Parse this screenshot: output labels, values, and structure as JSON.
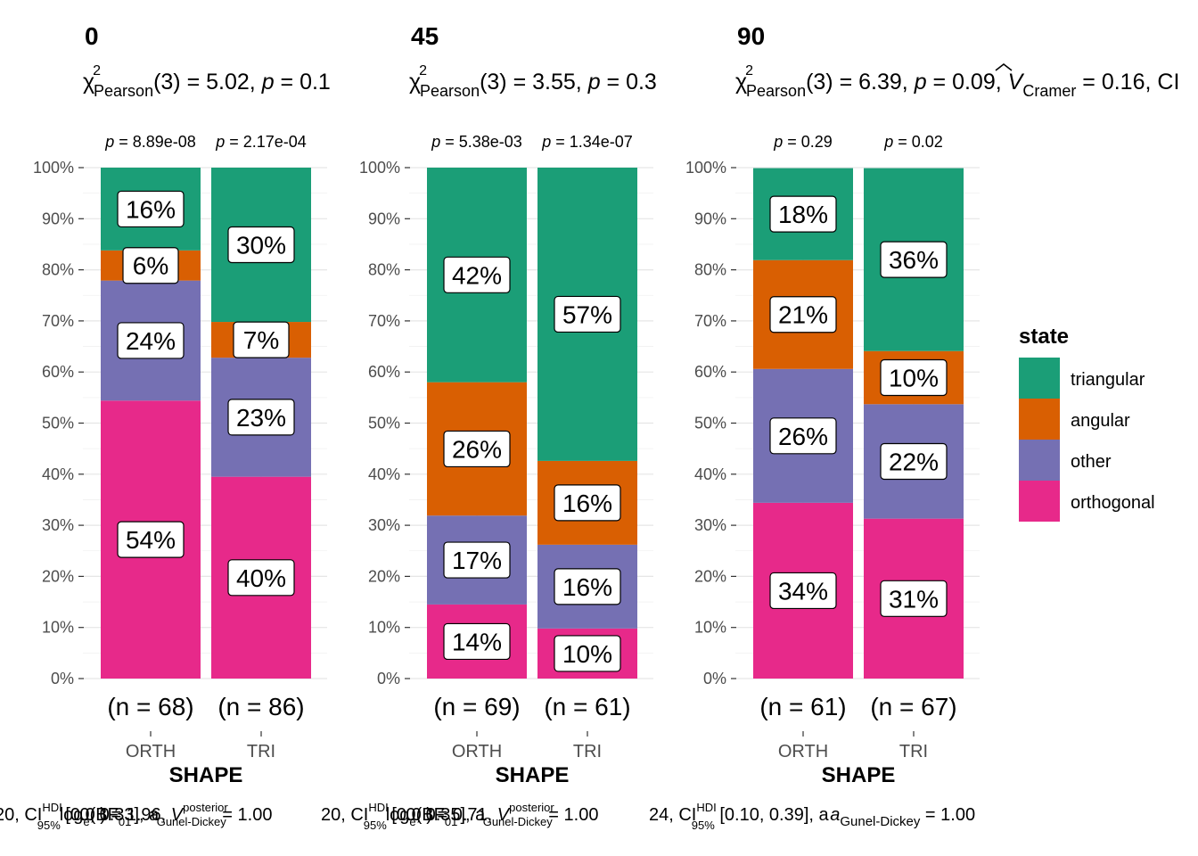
{
  "legend": {
    "title": "state",
    "items": [
      {
        "label": "triangular",
        "color": "#1B9E77"
      },
      {
        "label": "angular",
        "color": "#D95F02"
      },
      {
        "label": "other",
        "color": "#7570B3"
      },
      {
        "label": "orthogonal",
        "color": "#E7298A"
      }
    ]
  },
  "chart_data": [
    {
      "type": "bar",
      "title": "0",
      "subtitle": {
        "chi": "χ",
        "sup": "2",
        "sub": "Pearson",
        "rest1": "(3) = 5.02, ",
        "p": "p",
        "rest2": " = 0.1"
      },
      "xlabel": "SHAPE",
      "ylim": [
        0,
        100
      ],
      "yticks": [
        "0%",
        "10%",
        "20%",
        "30%",
        "40%",
        "50%",
        "60%",
        "70%",
        "80%",
        "90%",
        "100%"
      ],
      "categories": [
        "ORTH",
        "TRI"
      ],
      "n_labels": [
        "(n = 68)",
        "(n = 86)"
      ],
      "pvalues": [
        "p = 8.89e-08",
        "p = 2.17e-04"
      ],
      "series": [
        {
          "name": "orthogonal",
          "values": [
            54.4,
            39.5
          ],
          "labels": [
            "54%",
            "40%"
          ]
        },
        {
          "name": "other",
          "values": [
            23.5,
            23.3
          ],
          "labels": [
            "24%",
            "23%"
          ]
        },
        {
          "name": "angular",
          "values": [
            5.9,
            7.0
          ],
          "labels": [
            "6%",
            "7%"
          ]
        },
        {
          "name": "triangular",
          "values": [
            16.2,
            30.2
          ],
          "labels": [
            "16%",
            "30%"
          ]
        }
      ]
    },
    {
      "type": "bar",
      "title": "45",
      "subtitle": {
        "chi": "χ",
        "sup": "2",
        "sub": "Pearson",
        "rest1": "(3) = 3.55, ",
        "p": "p",
        "rest2": " = 0.3"
      },
      "xlabel": "SHAPE",
      "ylim": [
        0,
        100
      ],
      "yticks": [
        "0%",
        "10%",
        "20%",
        "30%",
        "40%",
        "50%",
        "60%",
        "70%",
        "80%",
        "90%",
        "100%"
      ],
      "categories": [
        "ORTH",
        "TRI"
      ],
      "n_labels": [
        "(n = 69)",
        "(n = 61)"
      ],
      "pvalues": [
        "p = 5.38e-03",
        "p = 1.34e-07"
      ],
      "series": [
        {
          "name": "orthogonal",
          "values": [
            14.5,
            9.8
          ],
          "labels": [
            "14%",
            "10%"
          ]
        },
        {
          "name": "other",
          "values": [
            17.4,
            16.4
          ],
          "labels": [
            "17%",
            "16%"
          ]
        },
        {
          "name": "angular",
          "values": [
            26.1,
            16.4
          ],
          "labels": [
            "26%",
            "16%"
          ]
        },
        {
          "name": "triangular",
          "values": [
            42.0,
            57.4
          ],
          "labels": [
            "42%",
            "57%"
          ]
        }
      ]
    },
    {
      "type": "bar",
      "title": "90",
      "subtitle": {
        "chi": "χ",
        "sup": "2",
        "sub": "Pearson",
        "rest1": "(3) = 6.39, ",
        "p": "p",
        "rest2": " = 0.09, ",
        "v": "V",
        "vsub": "Cramer",
        "rest3": " = 0.16, CI"
      },
      "xlabel": "SHAPE",
      "ylim": [
        0,
        100
      ],
      "yticks": [
        "0%",
        "10%",
        "20%",
        "30%",
        "40%",
        "50%",
        "60%",
        "70%",
        "80%",
        "90%",
        "100%"
      ],
      "categories": [
        "ORTH",
        "TRI"
      ],
      "n_labels": [
        "(n = 61)",
        "(n = 67)"
      ],
      "pvalues": [
        "p = 0.29",
        "p = 0.02"
      ],
      "series": [
        {
          "name": "orthogonal",
          "values": [
            34.4,
            31.3
          ],
          "labels": [
            "34%",
            "31%"
          ]
        },
        {
          "name": "other",
          "values": [
            26.2,
            22.4
          ],
          "labels": [
            "26%",
            "22%"
          ]
        },
        {
          "name": "angular",
          "values": [
            21.3,
            10.4
          ],
          "labels": [
            "21%",
            "10%"
          ]
        },
        {
          "name": "triangular",
          "values": [
            18.0,
            35.8
          ],
          "labels": [
            "18%",
            "36%"
          ]
        }
      ]
    }
  ],
  "captions": [
    {
      "a": "20, CI",
      "b": "[0.0",
      "c": "0, 0.33], a",
      "d": "= 1.00"
    },
    {
      "a": "20, CI",
      "b": "[0.0",
      "c": "0, 0.35], a",
      "d": "= 1.00"
    },
    {
      "a": "24, CI",
      "b": "[0.10, 0.39], a",
      "c": "",
      "d": "= 1.00"
    }
  ],
  "caption_fragments": {
    "hdi": "HDI",
    "ci95": "95%",
    "log": "log",
    "e": "e",
    "bf": "(BF",
    "bf01": "01",
    "bfval1": ") = 1.96,",
    "bfval2": ") = 0.71,",
    "vpost": "V",
    "posterior": "posterior",
    "gunel": "Gunel-Dickey",
    "cramer": "Cramer"
  }
}
